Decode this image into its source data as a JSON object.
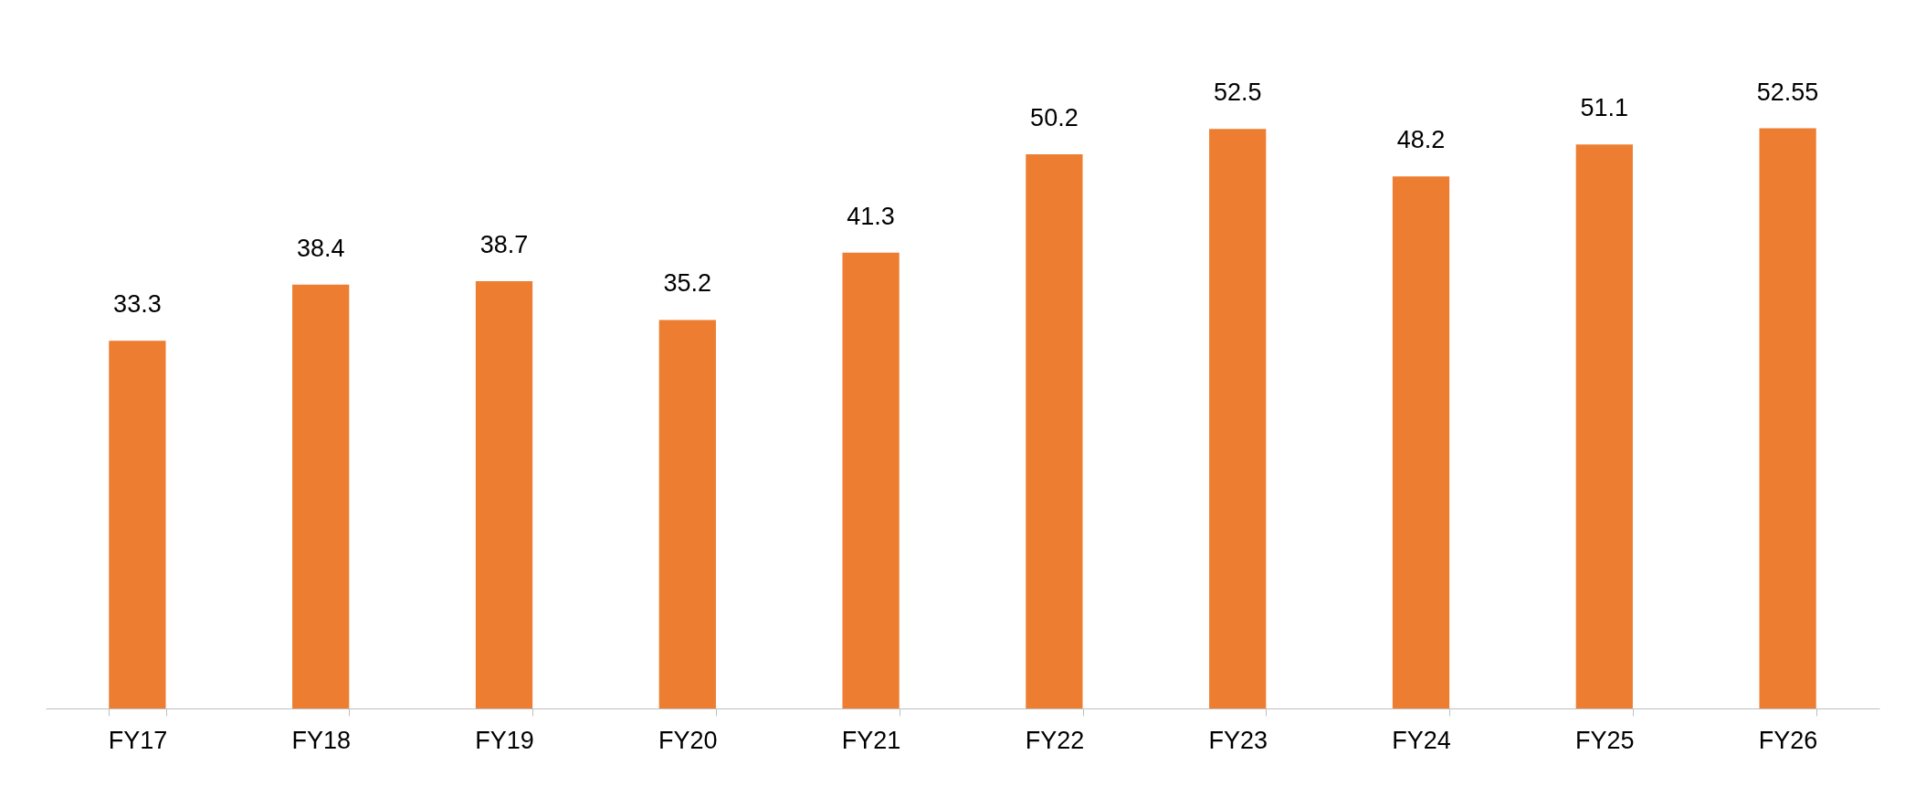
{
  "chart_data": {
    "type": "bar",
    "categories": [
      "FY17",
      "FY18",
      "FY19",
      "FY20",
      "FY21",
      "FY22",
      "FY23",
      "FY24",
      "FY25",
      "FY26"
    ],
    "values": [
      33.3,
      38.4,
      38.7,
      35.2,
      41.3,
      50.2,
      52.5,
      48.2,
      51.1,
      52.55
    ],
    "color": "#ed7d31",
    "data_labels": true
  }
}
